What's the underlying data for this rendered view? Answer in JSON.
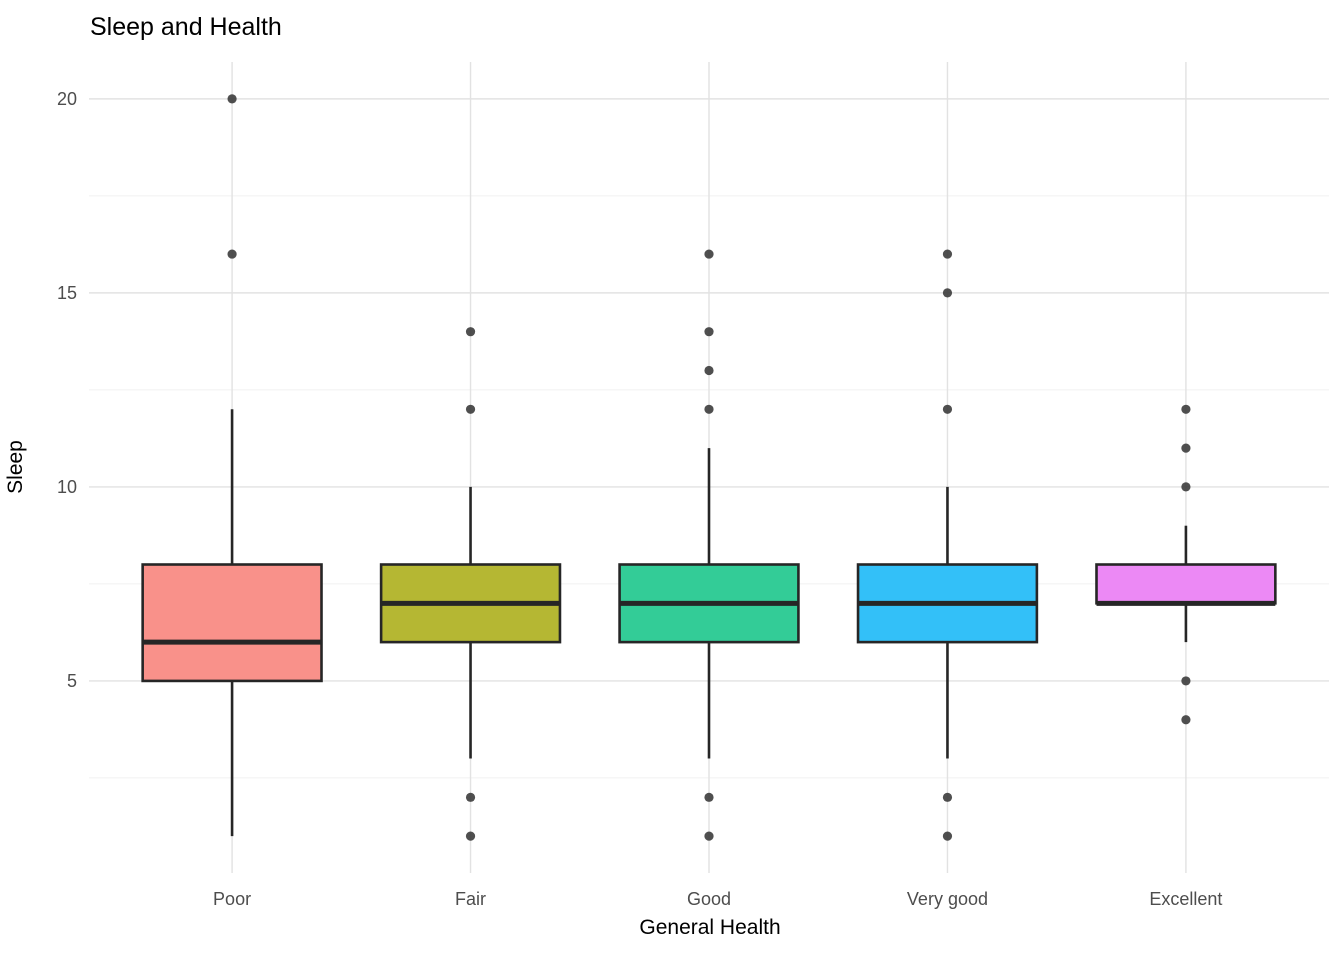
{
  "chart_data": {
    "type": "boxplot",
    "title": "Sleep and Health",
    "xlabel": "General Health",
    "ylabel": "Sleep",
    "categories": [
      "Poor",
      "Fair",
      "Good",
      "Very good",
      "Excellent"
    ],
    "series": [
      {
        "category": "Poor",
        "whisker_low": 1,
        "q1": 5,
        "median": 6,
        "q3": 8,
        "whisker_high": 12,
        "outliers": [
          16,
          20
        ]
      },
      {
        "category": "Fair",
        "whisker_low": 3,
        "q1": 6,
        "median": 7,
        "q3": 8,
        "whisker_high": 10,
        "outliers": [
          1,
          2,
          12,
          14
        ]
      },
      {
        "category": "Good",
        "whisker_low": 3,
        "q1": 6,
        "median": 7,
        "q3": 8,
        "whisker_high": 11,
        "outliers": [
          1,
          2,
          12,
          13,
          14,
          16
        ]
      },
      {
        "category": "Very good",
        "whisker_low": 3,
        "q1": 6,
        "median": 7,
        "q3": 8,
        "whisker_high": 10,
        "outliers": [
          1,
          2,
          12,
          15,
          16
        ]
      },
      {
        "category": "Excellent",
        "whisker_low": 6,
        "q1": 7,
        "median": 7,
        "q3": 8,
        "whisker_high": 9,
        "outliers": [
          4,
          5,
          10,
          11,
          12
        ]
      }
    ],
    "box_fill_colors": [
      "#F9918A",
      "#B5B733",
      "#33CC97",
      "#33C0F8",
      "#EC89F5"
    ],
    "box_stroke_color": "#262626",
    "outlier_color": "#3C3C3C",
    "y_ticks": [
      5,
      10,
      15,
      20
    ],
    "y_minor_ticks": [
      2.5,
      7.5,
      12.5,
      17.5
    ],
    "ylim": [
      0.05,
      20.95
    ],
    "grid": {
      "major_color": "#E2E2E2",
      "minor_color": "#F0F0F0",
      "vertical_at_categories": true
    },
    "axis_text_color": "#4D4D4D",
    "legend": "none",
    "background": "#FFFFFF"
  }
}
